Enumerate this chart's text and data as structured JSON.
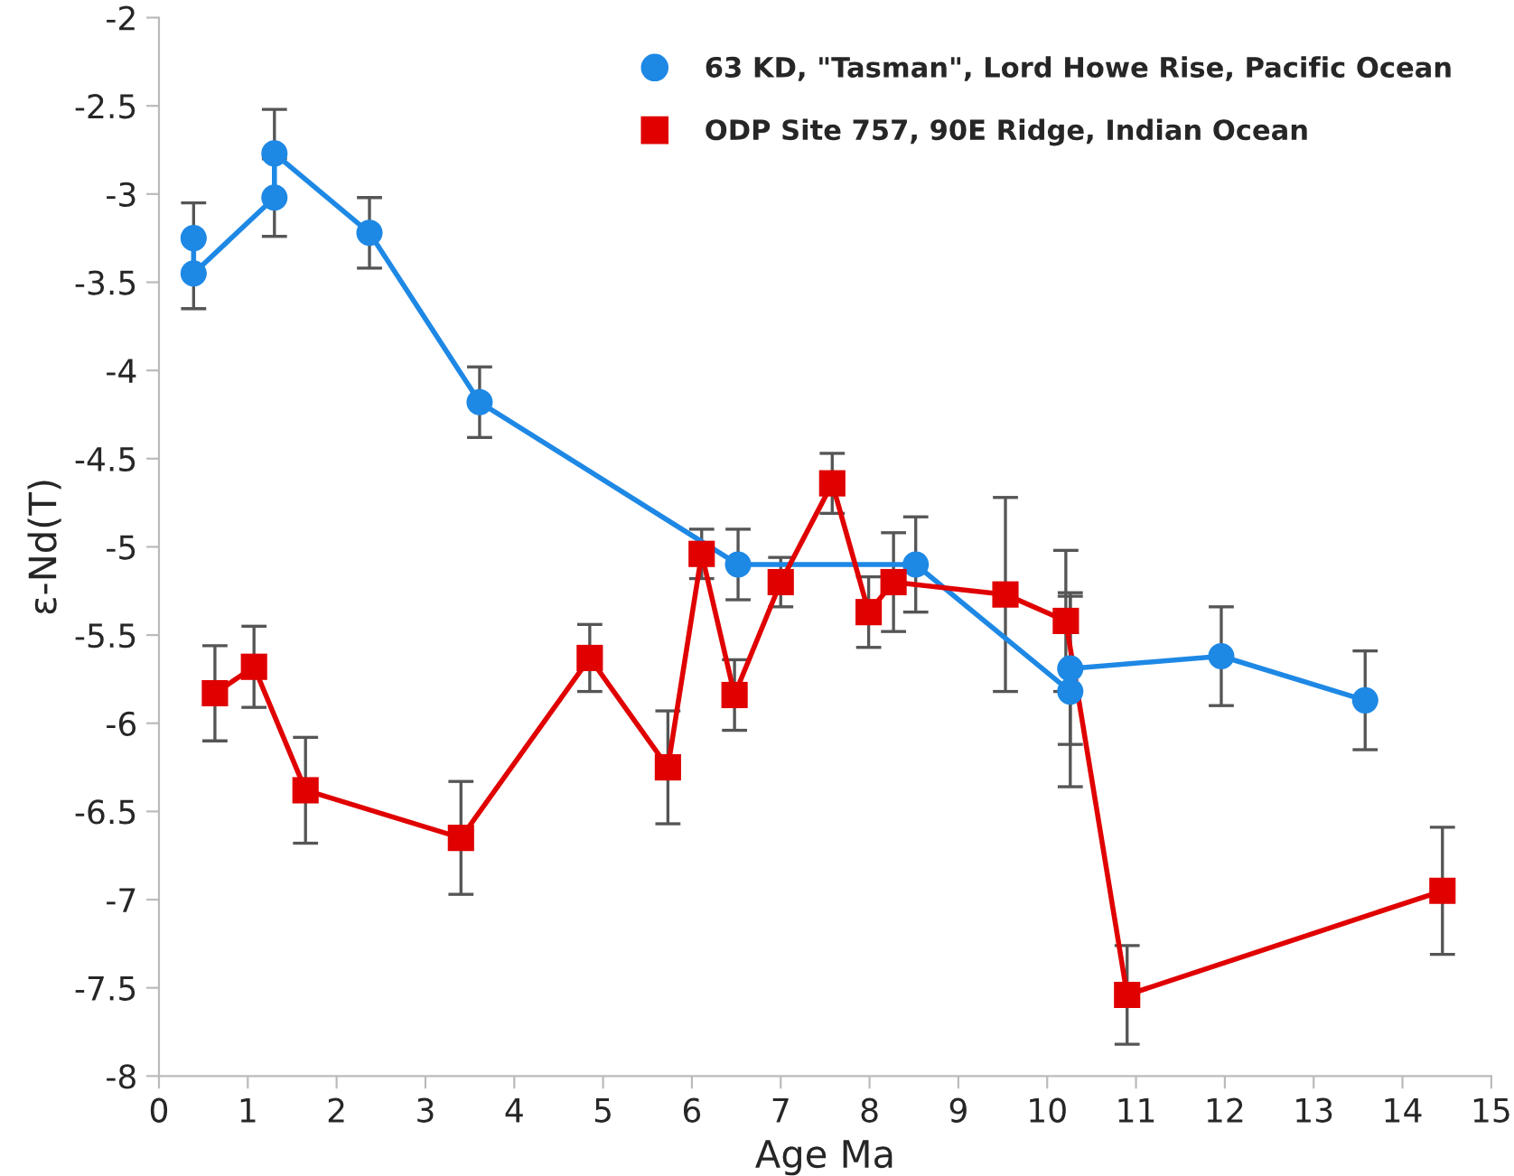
{
  "chart_data": {
    "type": "line",
    "xlabel": "Age Ma",
    "ylabel": "ε-Nd(T)",
    "xlim": [
      0,
      15
    ],
    "xticks": [
      0,
      1,
      2,
      3,
      4,
      5,
      6,
      7,
      8,
      9,
      10,
      11,
      12,
      13,
      14,
      15
    ],
    "ylim": [
      -8,
      -2
    ],
    "yticks": [
      -8,
      -7.5,
      -7,
      -6.5,
      -6,
      -5.5,
      -5,
      -4.5,
      -4,
      -3.5,
      -3,
      -2.5,
      -2
    ],
    "grid": false,
    "legend": "top right",
    "series": [
      {
        "name": "63 KD, \"Tasman\", Lord Howe Rise, Pacific Ocean",
        "color": "#1e88e5",
        "marker": "circle",
        "x": [
          0.39,
          0.39,
          1.3,
          1.3,
          2.37,
          3.61,
          6.52,
          8.52,
          10.26,
          10.26,
          11.96,
          13.58
        ],
        "values": [
          -3.25,
          -3.45,
          -3.02,
          -2.77,
          -3.22,
          -4.18,
          -5.1,
          -5.1,
          -5.82,
          -5.69,
          -5.62,
          -5.87
        ],
        "errors": [
          0.2,
          0.2,
          0.22,
          0.25,
          0.2,
          0.2,
          0.2,
          0.27,
          0.54,
          0.43,
          0.28,
          0.28
        ]
      },
      {
        "name": "ODP Site 757, 90E Ridge, Indian Ocean",
        "color": "#e00000",
        "marker": "square",
        "x": [
          0.63,
          1.07,
          1.65,
          3.4,
          4.85,
          5.73,
          6.11,
          6.48,
          7.0,
          7.58,
          7.99,
          8.27,
          9.53,
          10.21,
          10.9,
          14.45
        ],
        "values": [
          -5.83,
          -5.68,
          -6.38,
          -6.65,
          -5.63,
          -6.25,
          -5.04,
          -5.84,
          -5.2,
          -4.64,
          -5.37,
          -5.2,
          -5.27,
          -5.42,
          -7.54,
          -6.95
        ],
        "errors": [
          0.27,
          0.23,
          0.3,
          0.32,
          0.19,
          0.32,
          0.14,
          0.2,
          0.14,
          0.17,
          0.2,
          0.28,
          0.55,
          0.4,
          0.28,
          0.36
        ]
      }
    ]
  }
}
